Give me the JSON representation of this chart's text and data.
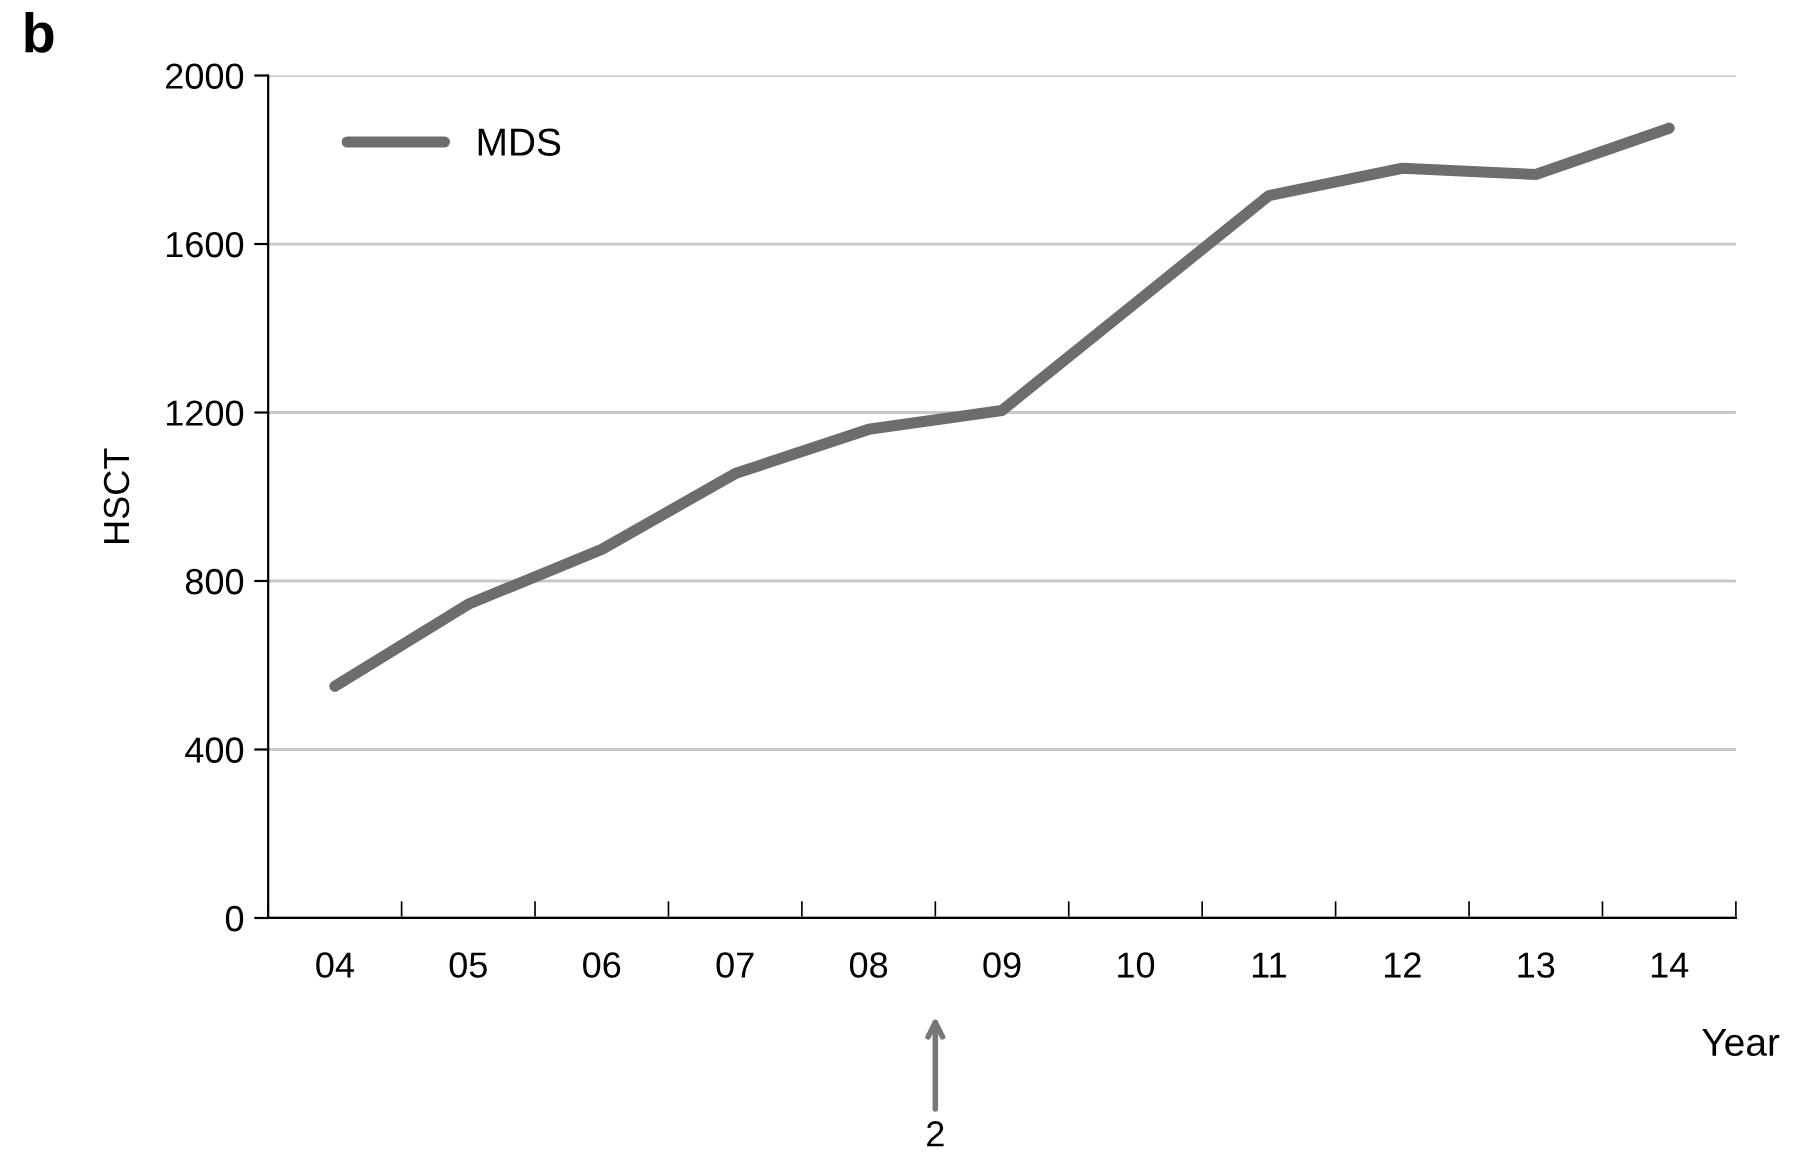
{
  "chart_data": {
    "type": "line",
    "xlabel": "Year",
    "ylabel": "HSCT",
    "categories": [
      "04",
      "05",
      "06",
      "07",
      "08",
      "09",
      "10",
      "11",
      "12",
      "13",
      "14"
    ],
    "series": [
      {
        "name": "MDS",
        "color": "#6d6d6d",
        "values": [
          550,
          745,
          875,
          1055,
          1160,
          1205,
          1460,
          1715,
          1780,
          1765,
          1875
        ]
      }
    ],
    "ylim": [
      0,
      2000
    ],
    "yticks": [
      0,
      400,
      800,
      1200,
      1600,
      2000
    ],
    "grid": "y",
    "legend": "top left",
    "marker": "none",
    "line_style": "solid",
    "annotations": [
      "b",
      "2"
    ]
  }
}
